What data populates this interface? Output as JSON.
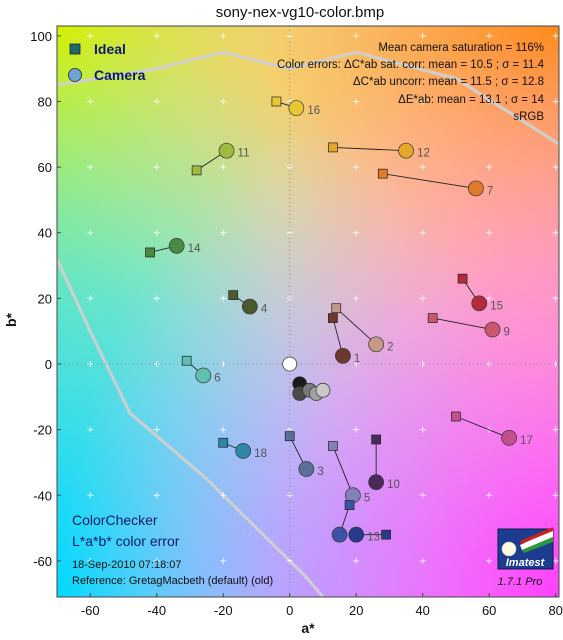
{
  "chart_data": {
    "type": "scatter",
    "title": "sony-nex-vg10-color.bmp",
    "xlabel": "a*",
    "ylabel": "b*",
    "xlim": [
      -70,
      81
    ],
    "ylim": [
      -71,
      103
    ],
    "xticks": [
      -60,
      -40,
      -20,
      0,
      20,
      40,
      60,
      80
    ],
    "xtick_labels": [
      "-60",
      "-40",
      "-20",
      "0",
      "20",
      "40",
      "60",
      "80"
    ],
    "yticks": [
      -60,
      -40,
      -20,
      0,
      20,
      40,
      60,
      80,
      100
    ],
    "ytick_labels": [
      "-60",
      "-40",
      "-20",
      "0",
      "20",
      "40",
      "60",
      "80",
      "100"
    ],
    "legend": {
      "placement": "top-left",
      "entries": [
        {
          "name": "Ideal",
          "marker": "square",
          "color": "#1f6b6b"
        },
        {
          "name": "Camera",
          "marker": "circle",
          "color": "#6fa3d6"
        }
      ]
    },
    "info_lines": [
      "Mean camera saturation = 116%",
      "Color errors:  ΔC*ab sat. corr:  mean = 10.5 ;  σ = 11.4",
      "ΔC*ab uncorr:  mean = 11.5 ;  σ = 12.8",
      "ΔE*ab:  mean = 13.1 ;  σ = 14",
      "sRGB"
    ],
    "patches": [
      {
        "label": "1",
        "ideal": [
          13,
          14
        ],
        "camera": [
          16,
          2.5
        ],
        "color": "#6b3a2c"
      },
      {
        "label": "2",
        "ideal": [
          14,
          17
        ],
        "camera": [
          26,
          6
        ],
        "color": "#c49a86"
      },
      {
        "label": "3",
        "ideal": [
          0,
          -22
        ],
        "camera": [
          5,
          -32
        ],
        "color": "#5a6f9a"
      },
      {
        "label": "4",
        "ideal": [
          -17,
          21
        ],
        "camera": [
          -12,
          17.5
        ],
        "color": "#4a5a2e"
      },
      {
        "label": "5",
        "ideal": [
          13,
          -25
        ],
        "camera": [
          19,
          -40
        ],
        "color": "#8480b8"
      },
      {
        "label": "6",
        "ideal": [
          -31,
          1
        ],
        "camera": [
          -26,
          -3.5
        ],
        "color": "#5fbfb0"
      },
      {
        "label": "7",
        "ideal": [
          28,
          58
        ],
        "camera": [
          56,
          53.5
        ],
        "color": "#e07a2a"
      },
      {
        "label": "8",
        "ideal": [
          18,
          -43
        ],
        "camera": [
          15,
          -52
        ],
        "color": "#3f52a8"
      },
      {
        "label": "9",
        "ideal": [
          43,
          14
        ],
        "camera": [
          61,
          10.5
        ],
        "color": "#c9586e"
      },
      {
        "label": "10",
        "ideal": [
          26,
          -23
        ],
        "camera": [
          26,
          -36
        ],
        "color": "#4a2a5c"
      },
      {
        "label": "11",
        "ideal": [
          -28,
          59
        ],
        "camera": [
          -19,
          65
        ],
        "color": "#9ebc40"
      },
      {
        "label": "12",
        "ideal": [
          13,
          66
        ],
        "camera": [
          35,
          65
        ],
        "color": "#e6a62a"
      },
      {
        "label": "13",
        "ideal": [
          29,
          -52
        ],
        "camera": [
          20,
          -52
        ],
        "color": "#283a8c"
      },
      {
        "label": "14",
        "ideal": [
          -42,
          34
        ],
        "camera": [
          -34,
          36
        ],
        "color": "#4a8a42"
      },
      {
        "label": "15",
        "ideal": [
          52,
          26
        ],
        "camera": [
          57,
          18.5
        ],
        "color": "#b52a3a"
      },
      {
        "label": "16",
        "ideal": [
          -4,
          80
        ],
        "camera": [
          2,
          78
        ],
        "color": "#e8c730"
      },
      {
        "label": "17",
        "ideal": [
          50,
          -16
        ],
        "camera": [
          66,
          -22.5
        ],
        "color": "#c2508c"
      },
      {
        "label": "18",
        "ideal": [
          -20,
          -24
        ],
        "camera": [
          -14,
          -26.5
        ],
        "color": "#2f87a8"
      }
    ],
    "neutrals": [
      {
        "camera": [
          0,
          0
        ],
        "color": "#ffffff"
      },
      {
        "camera": [
          3,
          -6
        ],
        "color": "#1a1a1a"
      },
      {
        "camera": [
          3,
          -9
        ],
        "color": "#4a4a4a"
      },
      {
        "camera": [
          6,
          -8
        ],
        "color": "#7a7a7a"
      },
      {
        "camera": [
          8,
          -9
        ],
        "color": "#a0a0a0"
      },
      {
        "camera": [
          10,
          -8
        ],
        "color": "#c8c8c8"
      }
    ],
    "footer": {
      "title_line1": "ColorChecker",
      "title_line2": "L*a*b* color error",
      "date": "18-Sep-2010 07:18:07",
      "reference": "Reference:  GretagMacbeth (default) (old)",
      "brand": "Imatest",
      "version": "1.7.1  Pro"
    },
    "colors": {
      "gamut_line": "#cfcfcf",
      "ideal_marker_edge": "#222222",
      "connector": "#222222"
    }
  }
}
